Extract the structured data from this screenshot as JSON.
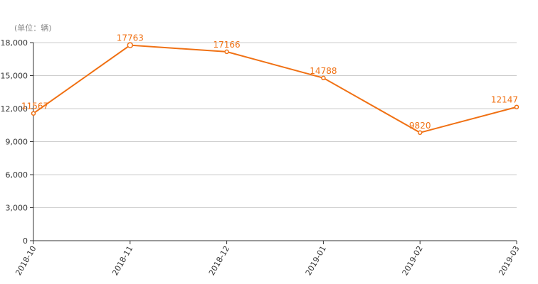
{
  "chart_data": {
    "type": "line",
    "unit_label": "(单位：辆)",
    "categories": [
      "2018-10",
      "2018-11",
      "2018-12",
      "2019-01",
      "2019-02",
      "2019-03"
    ],
    "series": [
      {
        "values": [
          11567,
          17763,
          17166,
          14788,
          9820,
          12147
        ]
      }
    ],
    "data_labels": [
      "11567",
      "17763",
      "17166",
      "14788",
      "9820",
      "12147"
    ],
    "ylim": [
      0,
      18000
    ],
    "yticks": [
      0,
      3000,
      6000,
      9000,
      12000,
      15000,
      18000
    ],
    "ytick_labels": [
      "0",
      "3,000",
      "6,000",
      "9,000",
      "12,000",
      "15,000",
      "18,000"
    ],
    "grid": true,
    "legend": "none",
    "colors": {
      "line": "#f07114",
      "grid": "#cccccc",
      "axis": "#333333"
    }
  }
}
